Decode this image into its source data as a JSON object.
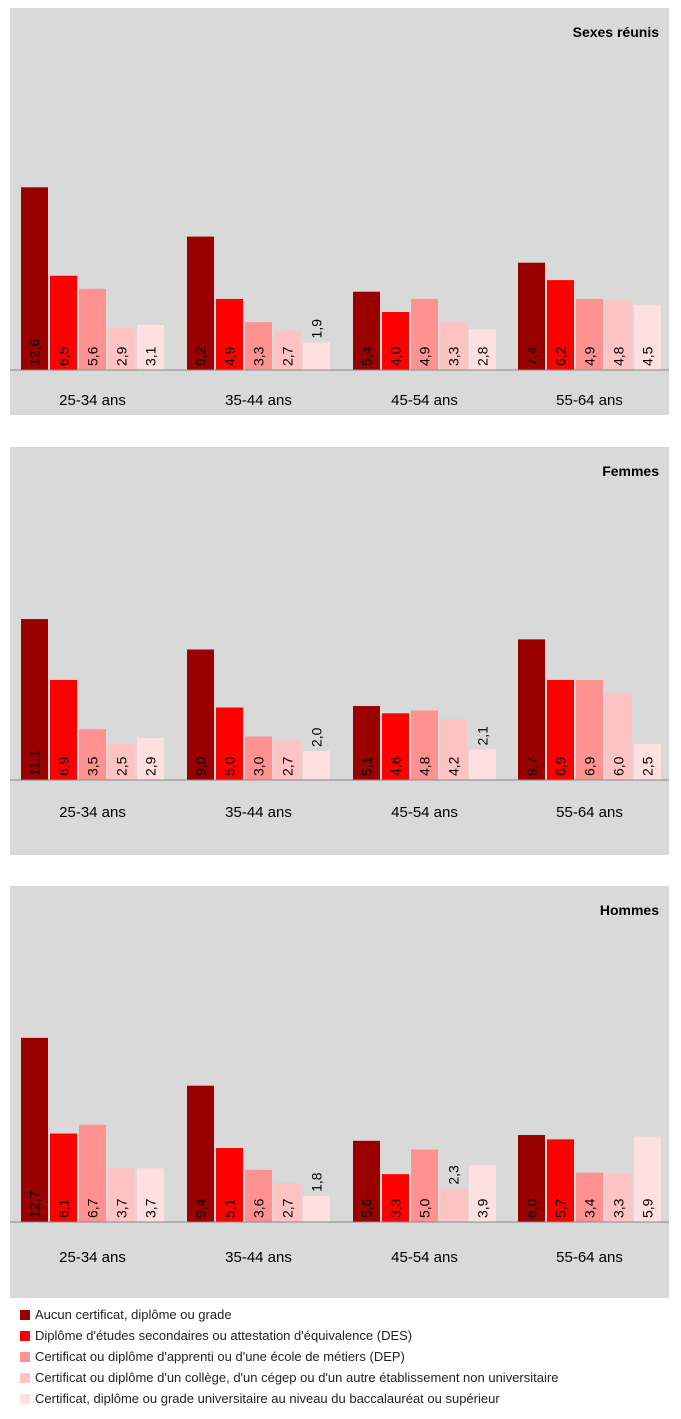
{
  "colors": [
    "#9b0000",
    "#ff0000",
    "#ff9191",
    "#ffc3c3",
    "#ffe0e0"
  ],
  "legend": [
    "Aucun certificat, diplôme ou grade",
    "Diplôme d'études secondaires ou attestation d'équivalence (DES)",
    "Certificat ou diplôme d'apprenti ou d'une école de métiers (DEP)",
    "Certificat ou diplôme d'un collège, d'un cégep ou d'un autre établissement non universitaire",
    "Certificat, diplôme ou grade universitaire au niveau du baccalauréat ou supérieur"
  ],
  "chart_data": [
    {
      "type": "bar",
      "title": "Sexes réunis",
      "categories": [
        "25-34 ans",
        "35-44 ans",
        "45-54 ans",
        "55-64 ans"
      ],
      "series": [
        {
          "name": "Aucun certificat, diplôme ou grade",
          "values": [
            12.6,
            9.2,
            5.4,
            7.4
          ],
          "labels": [
            "12,6",
            "9,2",
            "5,4",
            "7,4"
          ]
        },
        {
          "name": "Diplôme d'études secondaires ou attestation d'équivalence (DES)",
          "values": [
            6.5,
            4.9,
            4.0,
            6.2
          ],
          "labels": [
            "6,5",
            "4,9",
            "4,0",
            "6,2"
          ]
        },
        {
          "name": "Certificat ou diplôme d'apprenti ou d'une école de métiers (DEP)",
          "values": [
            5.6,
            3.3,
            4.9,
            4.9
          ],
          "labels": [
            "5,6",
            "3,3",
            "4,9",
            "4,9"
          ]
        },
        {
          "name": "Certificat ou diplôme d'un collège, d'un cégep ou d'un autre établissement non universitaire",
          "values": [
            2.9,
            2.7,
            3.3,
            4.8
          ],
          "labels": [
            "2,9",
            "2,7",
            "3,3",
            "4,8"
          ]
        },
        {
          "name": "Certificat, diplôme ou grade universitaire au niveau du baccalauréat ou supérieur",
          "values": [
            3.1,
            1.9,
            2.8,
            4.5
          ],
          "labels": [
            "3,1",
            "1,9",
            "2,8",
            "4,5"
          ]
        }
      ],
      "ylim": [
        0,
        25
      ],
      "grid": false,
      "legend_position": "bottom"
    },
    {
      "type": "bar",
      "title": "Femmes",
      "categories": [
        "25-34 ans",
        "35-44 ans",
        "45-54 ans",
        "55-64 ans"
      ],
      "series": [
        {
          "name": "Aucun certificat, diplôme ou grade",
          "values": [
            11.1,
            9.0,
            5.1,
            9.7
          ],
          "labels": [
            "11,1",
            "9,0",
            "5,1",
            "9,7"
          ]
        },
        {
          "name": "Diplôme d'études secondaires ou attestation d'équivalence (DES)",
          "values": [
            6.9,
            5.0,
            4.6,
            6.9
          ],
          "labels": [
            "6,9",
            "5,0",
            "4,6",
            "6,9"
          ]
        },
        {
          "name": "Certificat ou diplôme d'apprenti ou d'une école de métiers (DEP)",
          "values": [
            3.5,
            3.0,
            4.8,
            6.9
          ],
          "labels": [
            "3,5",
            "3,0",
            "4,8",
            "6,9"
          ]
        },
        {
          "name": "Certificat ou diplôme d'un collège, d'un cégep ou d'un autre établissement non universitaire",
          "values": [
            2.5,
            2.7,
            4.2,
            6.0
          ],
          "labels": [
            "2,5",
            "2,7",
            "4,2",
            "6,0"
          ]
        },
        {
          "name": "Certificat, diplôme ou grade universitaire au niveau du baccalauréat ou supérieur",
          "values": [
            2.9,
            2.0,
            2.1,
            2.5
          ],
          "labels": [
            "2,9",
            "2,0",
            "2,1",
            "2,5"
          ]
        }
      ],
      "ylim": [
        0,
        25
      ],
      "grid": false,
      "legend_position": "bottom"
    },
    {
      "type": "bar",
      "title": "Hommes",
      "categories": [
        "25-34 ans",
        "35-44 ans",
        "45-54 ans",
        "55-64 ans"
      ],
      "series": [
        {
          "name": "Aucun certificat, diplôme ou grade",
          "values": [
            12.7,
            9.4,
            5.6,
            6.0
          ],
          "labels": [
            "12,7",
            "9,4",
            "5,6",
            "6,0"
          ]
        },
        {
          "name": "Diplôme d'études secondaires ou attestation d'équivalence (DES)",
          "values": [
            6.1,
            5.1,
            3.3,
            5.7
          ],
          "labels": [
            "6,1",
            "5,1",
            "3,3",
            "5,7"
          ]
        },
        {
          "name": "Certificat ou diplôme d'apprenti ou d'une école de métiers (DEP)",
          "values": [
            6.7,
            3.6,
            5.0,
            3.4
          ],
          "labels": [
            "6,7",
            "3,6",
            "5,0",
            "3,4"
          ]
        },
        {
          "name": "Certificat ou diplôme d'un collège, d'un cégep ou d'un autre établissement non universitaire",
          "values": [
            3.7,
            2.7,
            2.3,
            3.3
          ],
          "labels": [
            "3,7",
            "2,7",
            "2,3",
            "3,3"
          ]
        },
        {
          "name": "Certificat, diplôme ou grade universitaire au niveau du baccalauréat ou supérieur",
          "values": [
            3.7,
            1.8,
            3.9,
            5.9
          ],
          "labels": [
            "3,7",
            "1,8",
            "3,9",
            "5,9"
          ]
        }
      ],
      "ylim": [
        0,
        25
      ],
      "grid": false,
      "legend_position": "bottom"
    }
  ]
}
